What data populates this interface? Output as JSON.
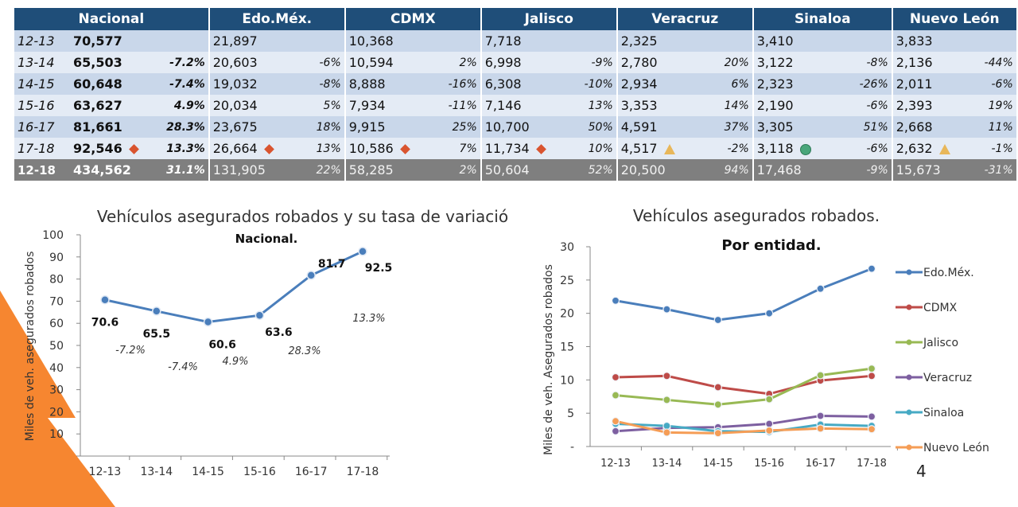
{
  "table": {
    "headers": [
      "Nacional",
      "Edo.Méx.",
      "CDMX",
      "Jalisco",
      "Veracruz",
      "Sinaloa",
      "Nuevo León"
    ],
    "rows": [
      {
        "period": "12-13",
        "values": [
          "70,577",
          "21,897",
          "10,368",
          "7,718",
          "2,325",
          "3,410",
          "3,833"
        ],
        "pcts": [
          "",
          "",
          "",
          "",
          "",
          "",
          ""
        ],
        "indicators": [
          "",
          "",
          "",
          "",
          "",
          "",
          ""
        ]
      },
      {
        "period": "13-14",
        "values": [
          "65,503",
          "20,603",
          "10,594",
          "6,998",
          "2,780",
          "3,122",
          "2,136"
        ],
        "pcts": [
          "-7.2%",
          "-6%",
          "2%",
          "-9%",
          "20%",
          "-8%",
          "-44%"
        ],
        "indicators": [
          "",
          "",
          "",
          "",
          "",
          "",
          ""
        ]
      },
      {
        "period": "14-15",
        "values": [
          "60,648",
          "19,032",
          "8,888",
          "6,308",
          "2,934",
          "2,323",
          "2,011"
        ],
        "pcts": [
          "-7.4%",
          "-8%",
          "-16%",
          "-10%",
          "6%",
          "-26%",
          "-6%"
        ],
        "indicators": [
          "",
          "",
          "",
          "",
          "",
          "",
          ""
        ]
      },
      {
        "period": "15-16",
        "values": [
          "63,627",
          "20,034",
          "7,934",
          "7,146",
          "3,353",
          "2,190",
          "2,393"
        ],
        "pcts": [
          "4.9%",
          "5%",
          "-11%",
          "13%",
          "14%",
          "-6%",
          "19%"
        ],
        "indicators": [
          "",
          "",
          "",
          "",
          "",
          "",
          ""
        ]
      },
      {
        "period": "16-17",
        "values": [
          "81,661",
          "23,675",
          "9,915",
          "10,700",
          "4,591",
          "3,305",
          "2,668"
        ],
        "pcts": [
          "28.3%",
          "18%",
          "25%",
          "50%",
          "37%",
          "51%",
          "11%"
        ],
        "indicators": [
          "",
          "",
          "",
          "",
          "",
          "",
          ""
        ]
      },
      {
        "period": "17-18",
        "values": [
          "92,546",
          "26,664",
          "10,586",
          "11,734",
          "4,517",
          "3,118",
          "2,632"
        ],
        "pcts": [
          "13.3%",
          "13%",
          "7%",
          "10%",
          "-2%",
          "-6%",
          "-1%"
        ],
        "indicators": [
          "diamond",
          "diamond",
          "diamond",
          "diamond",
          "triangle",
          "circle",
          "triangle"
        ]
      }
    ],
    "total": {
      "period": "12-18",
      "values": [
        "434,562",
        "131,905",
        "58,285",
        "50,604",
        "20,500",
        "17,468",
        "15,673"
      ],
      "pcts": [
        "31.1%",
        "22%",
        "2%",
        "52%",
        "94%",
        "-9%",
        "-31%"
      ]
    },
    "colors": {
      "header": "#1f4e79",
      "row_odd": "#c9d7ea",
      "row_even": "#e4ebf5",
      "total": "#7f7f7f",
      "diamond": "#d9542f",
      "circle": "#49a67b",
      "triangle": "#e8b75a"
    }
  },
  "chart_data": [
    {
      "type": "line",
      "title": "Vehículos asegurados robados y su tasa de variación.",
      "subtitle": "Nacional.",
      "ylabel": "Miles de veh. asegurados robados",
      "xlabel": "",
      "categories": [
        "12-13",
        "13-14",
        "14-15",
        "15-16",
        "16-17",
        "17-18"
      ],
      "series": [
        {
          "values": [
            70.6,
            65.5,
            60.6,
            63.6,
            81.7,
            92.5
          ],
          "color": "#4a7ebb"
        }
      ],
      "data_labels": [
        "70.6",
        "65.5",
        "60.6",
        "63.6",
        "81.7",
        "92.5"
      ],
      "rate_labels": [
        "-7.2%",
        "-7.4%",
        "4.9%",
        "28.3%",
        "13.3%"
      ],
      "yticks": [
        "",
        "10",
        "20",
        "30",
        "40",
        "50",
        "60",
        "70",
        "80",
        "90",
        "100"
      ],
      "ylim": [
        0,
        100
      ],
      "grid": false,
      "legend": "none"
    },
    {
      "type": "line",
      "title": "Vehículos asegurados robados.",
      "subtitle": "Por entidad.",
      "ylabel": "Miles de veh. Asegurados robados",
      "xlabel": "",
      "categories": [
        "12-13",
        "13-14",
        "14-15",
        "15-16",
        "16-17",
        "17-18"
      ],
      "series": [
        {
          "name": "Edo.Méx.",
          "values": [
            21.9,
            20.6,
            19.0,
            20.0,
            23.7,
            26.7
          ],
          "color": "#4a7ebb"
        },
        {
          "name": "CDMX",
          "values": [
            10.4,
            10.6,
            8.9,
            7.9,
            9.9,
            10.6
          ],
          "color": "#be4b48"
        },
        {
          "name": "Jalisco",
          "values": [
            7.7,
            7.0,
            6.3,
            7.1,
            10.7,
            11.7
          ],
          "color": "#98b954"
        },
        {
          "name": "Veracruz",
          "values": [
            2.3,
            2.8,
            2.9,
            3.4,
            4.6,
            4.5
          ],
          "color": "#7d5fa0"
        },
        {
          "name": "Sinaloa",
          "values": [
            3.4,
            3.1,
            2.3,
            2.2,
            3.3,
            3.1
          ],
          "color": "#46aac4"
        },
        {
          "name": "Nuevo León",
          "values": [
            3.8,
            2.1,
            2.0,
            2.4,
            2.7,
            2.6
          ],
          "color": "#f59d56"
        }
      ],
      "yticks": [
        "-",
        "5",
        "10",
        "15",
        "20",
        "25",
        "30"
      ],
      "ylim": [
        0,
        30
      ],
      "grid": false,
      "legend": "right"
    }
  ],
  "page_number": "4",
  "decor": {
    "orange": "#f58025"
  }
}
